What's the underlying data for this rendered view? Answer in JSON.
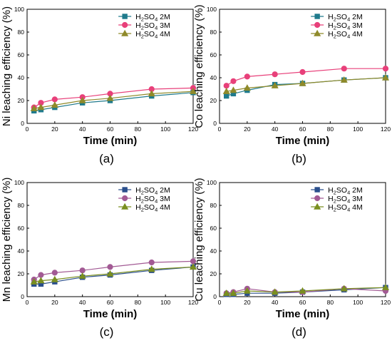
{
  "chart_data": [
    {
      "type": "line",
      "panel_label": "(a)",
      "xlabel": "Time (min)",
      "ylabel": "Ni leaching efficiency (%)",
      "xlim": [
        0,
        120
      ],
      "ylim": [
        0,
        100
      ],
      "xticks": [
        0,
        20,
        40,
        60,
        80,
        100,
        120
      ],
      "yticks": [
        0,
        20,
        40,
        60,
        80,
        100
      ],
      "legend_position": "top-right",
      "x": [
        5,
        10,
        20,
        40,
        60,
        90,
        120
      ],
      "series": [
        {
          "name": "H2SO4 2M",
          "acid": "H",
          "acid_sub": "2",
          "acid_mid": "SO",
          "acid_sub2": "4",
          "conc": " 2M",
          "marker": "square",
          "color": "#1f7a8c",
          "values": [
            11,
            12,
            14,
            18,
            20,
            24,
            27
          ]
        },
        {
          "name": "H2SO4 3M",
          "acid": "H",
          "acid_sub": "2",
          "acid_mid": "SO",
          "acid_sub2": "4",
          "conc": " 3M",
          "marker": "circle",
          "color": "#e8407a",
          "values": [
            14,
            18,
            21,
            23,
            26,
            30,
            31
          ]
        },
        {
          "name": "H2SO4 4M",
          "acid": "H",
          "acid_sub": "2",
          "acid_mid": "SO",
          "acid_sub2": "4",
          "conc": " 4M",
          "marker": "triangle",
          "color": "#8f8a2a",
          "values": [
            13,
            14,
            16,
            20,
            22,
            26,
            28
          ]
        }
      ]
    },
    {
      "type": "line",
      "panel_label": "(b)",
      "xlabel": "Time (min)",
      "ylabel": "Co leaching efficiency (%)",
      "xlim": [
        0,
        120
      ],
      "ylim": [
        0,
        100
      ],
      "xticks": [
        0,
        20,
        40,
        60,
        80,
        100,
        120
      ],
      "yticks": [
        0,
        20,
        40,
        60,
        80,
        100
      ],
      "legend_position": "top-right",
      "x": [
        5,
        10,
        20,
        40,
        60,
        90,
        120
      ],
      "series": [
        {
          "name": "H2SO4 2M",
          "acid": "H",
          "acid_sub": "2",
          "acid_mid": "SO",
          "acid_sub2": "4",
          "conc": " 2M",
          "marker": "square",
          "color": "#1f7a8c",
          "values": [
            24,
            26,
            29,
            34,
            35,
            38,
            40
          ]
        },
        {
          "name": "H2SO4 3M",
          "acid": "H",
          "acid_sub": "2",
          "acid_mid": "SO",
          "acid_sub2": "4",
          "conc": " 3M",
          "marker": "circle",
          "color": "#e8407a",
          "values": [
            33,
            37,
            41,
            43,
            45,
            48,
            48
          ]
        },
        {
          "name": "H2SO4 4M",
          "acid": "H",
          "acid_sub": "2",
          "acid_mid": "SO",
          "acid_sub2": "4",
          "conc": " 4M",
          "marker": "triangle",
          "color": "#8f8a2a",
          "values": [
            28,
            29,
            31,
            33,
            35,
            38,
            40
          ]
        }
      ]
    },
    {
      "type": "line",
      "panel_label": "(c)",
      "xlabel": "Time (min)",
      "ylabel": "Mn leaching efficiency (%)",
      "xlim": [
        0,
        120
      ],
      "ylim": [
        0,
        100
      ],
      "xticks": [
        0,
        20,
        40,
        60,
        80,
        100,
        120
      ],
      "yticks": [
        0,
        20,
        40,
        60,
        80,
        100
      ],
      "legend_position": "top-right",
      "x": [
        5,
        10,
        20,
        40,
        60,
        90,
        120
      ],
      "series": [
        {
          "name": "H2SO4 2M",
          "acid": "H",
          "acid_sub": "2",
          "acid_mid": "SO",
          "acid_sub2": "4",
          "conc": " 2M",
          "marker": "square",
          "color": "#2b4f8c",
          "values": [
            11,
            11,
            13,
            17,
            19,
            23,
            26
          ]
        },
        {
          "name": "H2SO4 3M",
          "acid": "H",
          "acid_sub": "2",
          "acid_mid": "SO",
          "acid_sub2": "4",
          "conc": " 3M",
          "marker": "circle",
          "color": "#a25a94",
          "values": [
            15,
            19,
            21,
            23,
            26,
            30,
            31
          ]
        },
        {
          "name": "H2SO4 4M",
          "acid": "H",
          "acid_sub": "2",
          "acid_mid": "SO",
          "acid_sub2": "4",
          "conc": " 4M",
          "marker": "triangle",
          "color": "#7a8f20",
          "values": [
            13,
            14,
            15,
            18,
            20,
            24,
            26
          ]
        }
      ]
    },
    {
      "type": "line",
      "panel_label": "(d)",
      "xlabel": "Time (min)",
      "ylabel": "Cu leaching efficiency (%)",
      "xlim": [
        0,
        120
      ],
      "ylim": [
        0,
        100
      ],
      "xticks": [
        0,
        20,
        40,
        60,
        80,
        100,
        120
      ],
      "yticks": [
        0,
        20,
        40,
        60,
        80,
        100
      ],
      "legend_position": "top-right",
      "x": [
        5,
        10,
        20,
        40,
        60,
        90,
        120
      ],
      "series": [
        {
          "name": "H2SO4 2M",
          "acid": "H",
          "acid_sub": "2",
          "acid_mid": "SO",
          "acid_sub2": "4",
          "conc": " 2M",
          "marker": "square",
          "color": "#2b4f8c",
          "values": [
            2,
            2,
            3,
            3,
            4,
            6,
            8
          ]
        },
        {
          "name": "H2SO4 3M",
          "acid": "H",
          "acid_sub": "2",
          "acid_mid": "SO",
          "acid_sub2": "4",
          "conc": " 3M",
          "marker": "circle",
          "color": "#a25a94",
          "values": [
            3,
            4,
            7,
            4,
            4,
            7,
            5
          ]
        },
        {
          "name": "H2SO4 4M",
          "acid": "H",
          "acid_sub": "2",
          "acid_mid": "SO",
          "acid_sub2": "4",
          "conc": " 4M",
          "marker": "triangle",
          "color": "#7a8f20",
          "values": [
            3,
            3,
            5,
            4,
            5,
            7,
            8
          ]
        }
      ]
    }
  ]
}
